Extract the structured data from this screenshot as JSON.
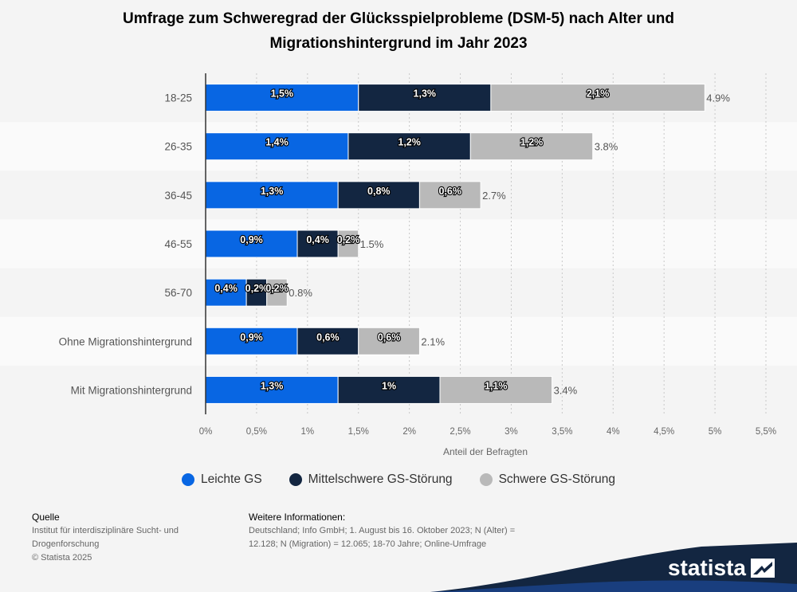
{
  "title": "Umfrage zum Schweregrad der Glücksspielprobleme (DSM-5) nach Alter und Migrationshintergrund im Jahr 2023",
  "chart_data": {
    "type": "bar",
    "orientation": "horizontal",
    "stacked": true,
    "categories": [
      "18-25",
      "26-35",
      "36-45",
      "46-55",
      "56-70",
      "Ohne Migrationshintergrund",
      "Mit Migrationshintergrund"
    ],
    "series": [
      {
        "name": "Leichte GS",
        "color": "#0866e3",
        "values": [
          1.5,
          1.4,
          1.3,
          0.9,
          0.4,
          0.9,
          1.3
        ],
        "labels": [
          "1,5%",
          "1,4%",
          "1,3%",
          "0,9%",
          "0,4%",
          "0,9%",
          "1,3%"
        ]
      },
      {
        "name": "Mittelschwere GS-Störung",
        "color": "#132641",
        "values": [
          1.3,
          1.2,
          0.8,
          0.4,
          0.2,
          0.6,
          1.0
        ],
        "labels": [
          "1,3%",
          "1,2%",
          "0,8%",
          "0,4%",
          "0,2%",
          "0,6%",
          "1%"
        ]
      },
      {
        "name": "Schwere GS-Störung",
        "color": "#b9b9b9",
        "values": [
          2.1,
          1.2,
          0.6,
          0.2,
          0.2,
          0.6,
          1.1
        ],
        "labels": [
          "2,1%",
          "1,2%",
          "0,6%",
          "0,2%",
          "0,2%",
          "0,6%",
          "1,1%"
        ]
      }
    ],
    "totals": [
      "4.9%",
      "3.8%",
      "2.7%",
      "1.5%",
      "0.8%",
      "2.1%",
      "3.4%"
    ],
    "xlim": [
      0,
      5.5
    ],
    "ticks": [
      0,
      0.5,
      1,
      1.5,
      2,
      2.5,
      3,
      3.5,
      4,
      4.5,
      5,
      5.5
    ],
    "tick_labels": [
      "0%",
      "0,5%",
      "1%",
      "1,5%",
      "2%",
      "2,5%",
      "3%",
      "3,5%",
      "4%",
      "4,5%",
      "5%",
      "5,5%"
    ],
    "xlabel": "Anteil der Befragten",
    "ylabel": "",
    "grid": true,
    "legend": "bottom"
  },
  "footer": {
    "source_head": "Quelle",
    "source_lines": [
      "Institut für interdisziplinäre Sucht- und",
      "Drogenforschung",
      "© Statista 2025"
    ],
    "info_head": "Weitere Informationen:",
    "info_lines": [
      "Deutschland; Info GmbH; 1. August bis 16. Oktober 2023; N (Alter) =",
      "12.128; N (Migration) = 12.065; 18-70 Jahre; Online-Umfrage"
    ]
  },
  "logo": {
    "text": "statista"
  }
}
